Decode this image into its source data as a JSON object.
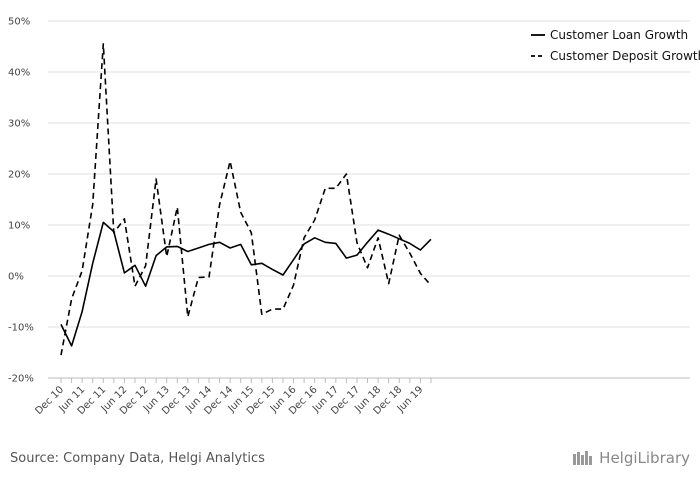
{
  "chart_data": {
    "type": "line",
    "title": "",
    "xlabel": "",
    "ylabel": "",
    "ylim": [
      -20,
      50
    ],
    "yticks": [
      -20,
      -10,
      0,
      10,
      20,
      30,
      40,
      50
    ],
    "ytick_labels": [
      "-20%",
      "-10%",
      "0%",
      "10%",
      "20%",
      "30%",
      "40%",
      "50%"
    ],
    "x_tick_labels": [
      "Dec 10",
      "Jun 11",
      "Dec 11",
      "Jun 12",
      "Dec 12",
      "Jun 13",
      "Dec 13",
      "Jun 14",
      "Dec 14",
      "Jun 15",
      "Dec 15",
      "Jun 16",
      "Dec 16",
      "Jun 17",
      "Dec 17",
      "Jun 18",
      "Dec 18",
      "Jun 19"
    ],
    "periods": [
      "Dec 10",
      "Mar 11",
      "Jun 11",
      "Sep 11",
      "Dec 11",
      "Mar 12",
      "Jun 12",
      "Sep 12",
      "Dec 12",
      "Mar 13",
      "Jun 13",
      "Sep 13",
      "Dec 13",
      "Mar 14",
      "Jun 14",
      "Sep 14",
      "Dec 14",
      "Mar 15",
      "Jun 15",
      "Sep 15",
      "Dec 15",
      "Mar 16",
      "Jun 16",
      "Sep 16",
      "Dec 16",
      "Mar 17",
      "Jun 17",
      "Sep 17",
      "Dec 17",
      "Mar 18",
      "Jun 18",
      "Sep 18",
      "Dec 18",
      "Mar 19",
      "Jun 19",
      "Sep 19"
    ],
    "grid": true,
    "legend_position": "top-right",
    "series": [
      {
        "name": "Customer Loan Growth",
        "style": "solid",
        "color": "#000000",
        "values": [
          -9.5,
          -13.7,
          -7.0,
          2.5,
          10.5,
          8.7,
          0.6,
          2.1,
          -2.0,
          4.0,
          5.7,
          5.8,
          4.8,
          5.5,
          6.2,
          6.6,
          5.5,
          6.2,
          2.2,
          2.5,
          1.3,
          0.2,
          3.2,
          6.3,
          7.5,
          6.6,
          6.4,
          3.5,
          4.1,
          6.6,
          9.0,
          8.2,
          7.3,
          6.4,
          5.1,
          7.2
        ]
      },
      {
        "name": "Customer Deposit Growth",
        "style": "dashed",
        "color": "#000000",
        "values": [
          -15.5,
          -4.5,
          1.0,
          14.0,
          45.5,
          8.5,
          11.2,
          -2.0,
          2.0,
          19.0,
          3.8,
          13.5,
          -8.0,
          -0.3,
          -0.2,
          14.0,
          22.5,
          12.5,
          8.5,
          -7.5,
          -6.5,
          -6.5,
          -1.8,
          7.5,
          11.0,
          17.2,
          17.2,
          20.0,
          6.5,
          1.6,
          7.5,
          -1.5,
          8.0,
          4.5,
          0.5,
          -1.8
        ]
      }
    ]
  },
  "source_text": "Source: Company Data, Helgi Analytics",
  "logo_text": "HelgiLibrary"
}
